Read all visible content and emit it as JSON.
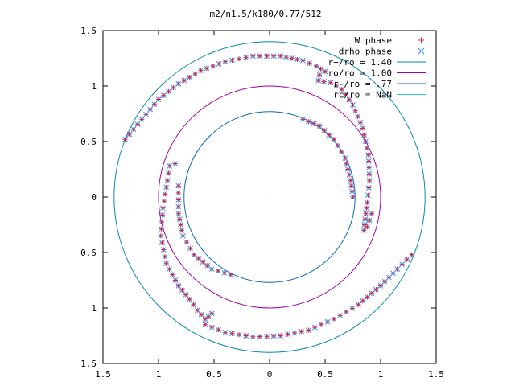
{
  "chart_data": {
    "type": "scatter",
    "title": "m2/n1.5/k180/0.77/512",
    "xlabel": "",
    "ylabel": "",
    "xlim": [
      -1.5,
      1.5
    ],
    "ylim": [
      -1.5,
      1.5
    ],
    "x_ticks": [
      {
        "value": -1.5,
        "label": "1.5"
      },
      {
        "value": -1.0,
        "label": "1"
      },
      {
        "value": -0.5,
        "label": "0.5"
      },
      {
        "value": 0,
        "label": "0"
      },
      {
        "value": 0.5,
        "label": "0.5"
      },
      {
        "value": 1.0,
        "label": "1"
      },
      {
        "value": 1.5,
        "label": "1.5"
      }
    ],
    "y_ticks": [
      {
        "value": 1.5,
        "label": "1.5"
      },
      {
        "value": 1.0,
        "label": "1"
      },
      {
        "value": 0.5,
        "label": "0.5"
      },
      {
        "value": 0,
        "label": "0"
      },
      {
        "value": -0.5,
        "label": "0.5"
      },
      {
        "value": -1.0,
        "label": "1"
      },
      {
        "value": -1.5,
        "label": "1.5"
      }
    ],
    "grid": false,
    "legend_position": "top-right",
    "circles": [
      {
        "name": "r+/ro = 1.40",
        "radius": 1.4,
        "color": "#0a8ab0"
      },
      {
        "name": "ro/ro = 1.00",
        "radius": 1.0,
        "color": "#a400a4"
      },
      {
        "name": "r-/ro = .77",
        "radius": 0.77,
        "color": "#0a6ab8"
      },
      {
        "name": "rc/ro = NaN",
        "radius": null,
        "color": "#30c8c8"
      }
    ],
    "series": [
      {
        "name": "W phase",
        "marker": "+",
        "color": "#e0203a"
      },
      {
        "name": "drho phase",
        "marker": "x",
        "color": "#3a8ae8"
      }
    ],
    "curve_points": {
      "arc_outer_top": [
        [
          -1.3,
          0.52
        ],
        [
          -1.15,
          0.7
        ],
        [
          -1.0,
          0.88
        ],
        [
          -0.82,
          1.02
        ],
        [
          -0.62,
          1.14
        ],
        [
          -0.4,
          1.22
        ],
        [
          -0.15,
          1.27
        ],
        [
          0.1,
          1.27
        ],
        [
          0.3,
          1.23
        ],
        [
          0.42,
          1.18
        ],
        [
          0.5,
          1.13
        ]
      ],
      "hook_top_right": [
        [
          0.5,
          1.13
        ],
        [
          0.45,
          1.1
        ],
        [
          0.44,
          1.05
        ],
        [
          0.49,
          1.04
        ],
        [
          0.55,
          1.03
        ],
        [
          0.65,
          0.97
        ],
        [
          0.75,
          0.83
        ],
        [
          0.84,
          0.62
        ],
        [
          0.89,
          0.38
        ],
        [
          0.9,
          0.15
        ],
        [
          0.88,
          -0.05
        ],
        [
          0.86,
          -0.2
        ],
        [
          0.85,
          -0.3
        ],
        [
          0.88,
          -0.27
        ],
        [
          0.92,
          -0.15
        ]
      ],
      "inner_right": [
        [
          0.3,
          0.7
        ],
        [
          0.45,
          0.64
        ],
        [
          0.58,
          0.52
        ],
        [
          0.68,
          0.35
        ],
        [
          0.73,
          0.15
        ],
        [
          0.75,
          0.0
        ]
      ],
      "left_hook": [
        [
          -0.85,
          0.3
        ],
        [
          -0.9,
          0.28
        ],
        [
          -0.92,
          0.15
        ],
        [
          -0.96,
          -0.1
        ],
        [
          -0.98,
          -0.35
        ],
        [
          -0.93,
          -0.6
        ],
        [
          -0.82,
          -0.8
        ],
        [
          -0.72,
          -0.92
        ],
        [
          -0.65,
          -1.02
        ],
        [
          -0.58,
          -1.1
        ],
        [
          -0.55,
          -1.08
        ],
        [
          -0.52,
          -1.05
        ]
      ],
      "inner_left": [
        [
          -0.82,
          0.1
        ],
        [
          -0.82,
          -0.15
        ],
        [
          -0.78,
          -0.35
        ],
        [
          -0.68,
          -0.52
        ],
        [
          -0.52,
          -0.65
        ],
        [
          -0.35,
          -0.7
        ]
      ],
      "arc_outer_bottom": [
        [
          -0.58,
          -1.15
        ],
        [
          -0.4,
          -1.22
        ],
        [
          -0.15,
          -1.26
        ],
        [
          0.1,
          -1.25
        ],
        [
          0.35,
          -1.2
        ],
        [
          0.58,
          -1.1
        ],
        [
          0.8,
          -0.97
        ],
        [
          1.0,
          -0.8
        ],
        [
          1.15,
          -0.65
        ],
        [
          1.28,
          -0.52
        ]
      ]
    }
  }
}
